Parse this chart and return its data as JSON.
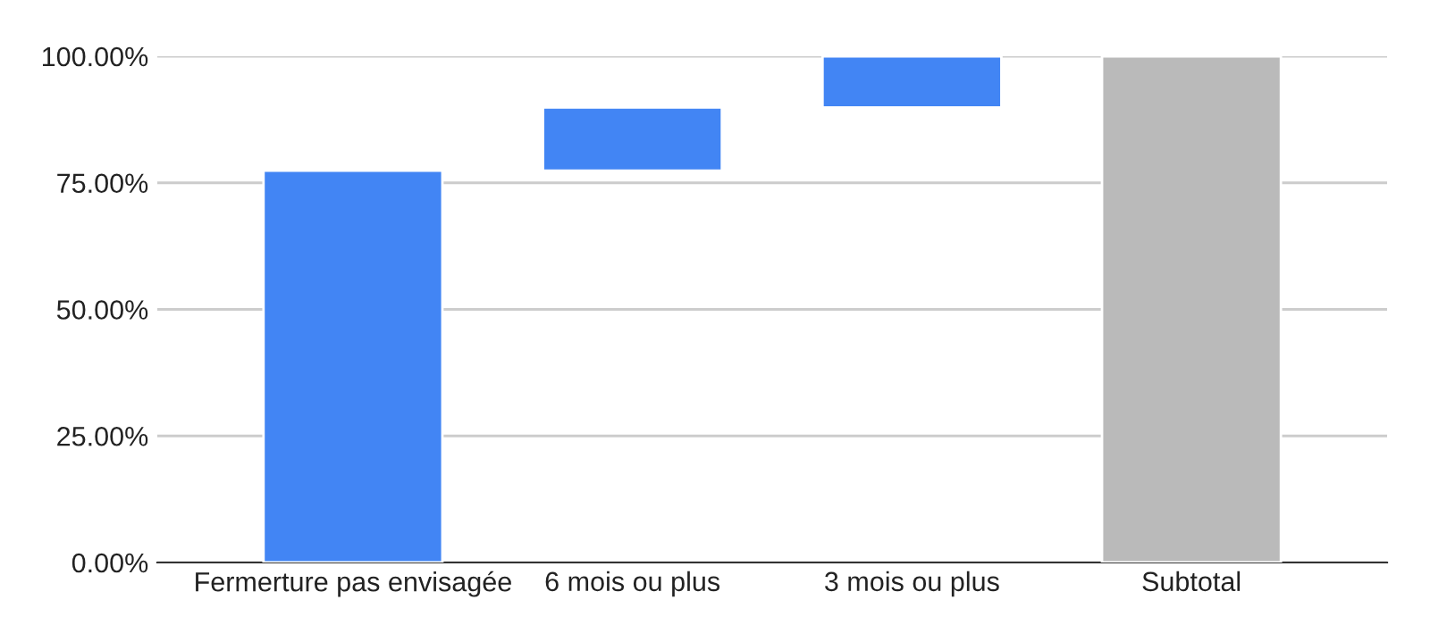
{
  "chart_data": {
    "type": "bar",
    "categories": [
      "Fermerture pas envisagée",
      "6 mois ou plus",
      "3 mois ou plus",
      "Subtotal"
    ],
    "values": [
      77.4,
      12.5,
      10.1,
      100
    ],
    "base": [
      0,
      77.4,
      89.9,
      0
    ],
    "colors": [
      "#4285f4",
      "#4285f4",
      "#4285f4",
      "#bababa"
    ],
    "ylim": [
      0,
      100
    ],
    "yticks": [
      {
        "value": 0,
        "label": "0.00%"
      },
      {
        "value": 25,
        "label": "25.00%"
      },
      {
        "value": 50,
        "label": "50.00%"
      },
      {
        "value": 75,
        "label": "75.00%"
      },
      {
        "value": 100,
        "label": "100.00%"
      }
    ],
    "grid": "y",
    "legend": false
  }
}
